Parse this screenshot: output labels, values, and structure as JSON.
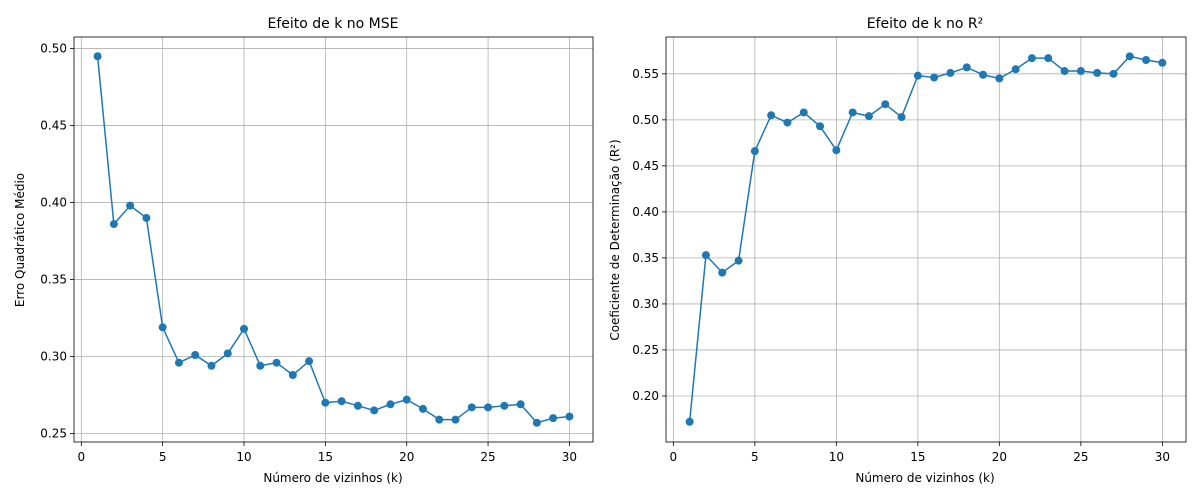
{
  "chart_data": [
    {
      "type": "line",
      "title": "Efeito de k no MSE",
      "xlabel": "Número de vizinhos (k)",
      "ylabel": "Erro Quadrático Médio",
      "xlim": [
        -0.45,
        31.45
      ],
      "ylim": [
        0.2445,
        0.5075
      ],
      "x_ticks": [
        0,
        5,
        10,
        15,
        20,
        25,
        30
      ],
      "x_tick_labels": [
        "0",
        "5",
        "10",
        "15",
        "20",
        "25",
        "30"
      ],
      "y_ticks": [
        0.25,
        0.3,
        0.35,
        0.4,
        0.45,
        0.5
      ],
      "y_tick_labels": [
        "0.25",
        "0.30",
        "0.35",
        "0.40",
        "0.45",
        "0.50"
      ],
      "grid": true,
      "color": "#1f77b4",
      "marker": "circle",
      "x": [
        1,
        2,
        3,
        4,
        5,
        6,
        7,
        8,
        9,
        10,
        11,
        12,
        13,
        14,
        15,
        16,
        17,
        18,
        19,
        20,
        21,
        22,
        23,
        24,
        25,
        26,
        27,
        28,
        29,
        30
      ],
      "values": [
        0.495,
        0.386,
        0.398,
        0.39,
        0.319,
        0.296,
        0.301,
        0.294,
        0.302,
        0.318,
        0.294,
        0.296,
        0.288,
        0.297,
        0.27,
        0.271,
        0.268,
        0.265,
        0.269,
        0.272,
        0.266,
        0.259,
        0.259,
        0.267,
        0.267,
        0.268,
        0.269,
        0.257,
        0.26,
        0.261
      ]
    },
    {
      "type": "line",
      "title": "Efeito de k no R²",
      "xlabel": "Número de vizinhos (k)",
      "ylabel": "Coeficiente de Determinação (R²)",
      "xlim": [
        -0.45,
        31.45
      ],
      "ylim": [
        0.15,
        0.59
      ],
      "x_ticks": [
        0,
        5,
        10,
        15,
        20,
        25,
        30
      ],
      "x_tick_labels": [
        "0",
        "5",
        "10",
        "15",
        "20",
        "25",
        "30"
      ],
      "y_ticks": [
        0.2,
        0.25,
        0.3,
        0.35,
        0.4,
        0.45,
        0.5,
        0.55
      ],
      "y_tick_labels": [
        "0.20",
        "0.25",
        "0.30",
        "0.35",
        "0.40",
        "0.45",
        "0.50",
        "0.55"
      ],
      "grid": true,
      "color": "#1f77b4",
      "marker": "circle",
      "x": [
        1,
        2,
        3,
        4,
        5,
        6,
        7,
        8,
        9,
        10,
        11,
        12,
        13,
        14,
        15,
        16,
        17,
        18,
        19,
        20,
        21,
        22,
        23,
        24,
        25,
        26,
        27,
        28,
        29,
        30
      ],
      "values": [
        0.172,
        0.353,
        0.334,
        0.347,
        0.466,
        0.505,
        0.497,
        0.508,
        0.493,
        0.467,
        0.508,
        0.504,
        0.517,
        0.503,
        0.548,
        0.546,
        0.551,
        0.557,
        0.549,
        0.545,
        0.555,
        0.567,
        0.567,
        0.553,
        0.553,
        0.551,
        0.55,
        0.569,
        0.565,
        0.562
      ]
    }
  ]
}
